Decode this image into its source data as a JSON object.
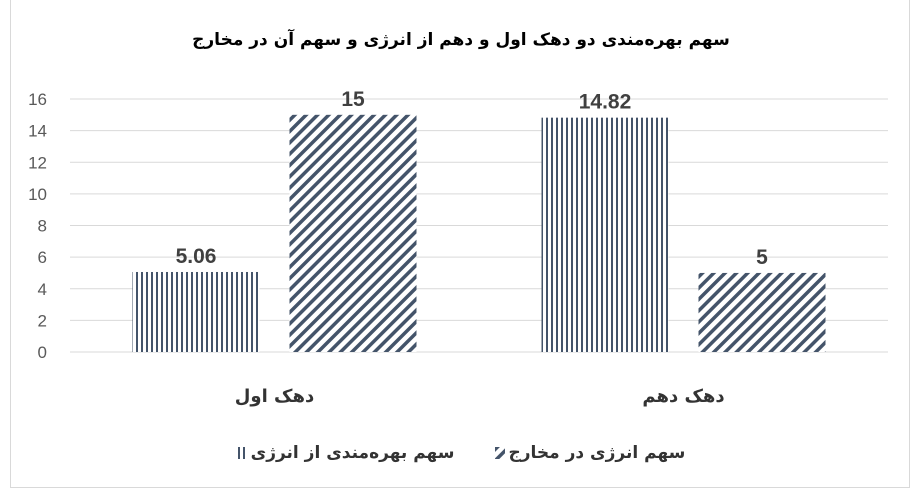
{
  "chart_data": {
    "type": "bar",
    "title": "سهم بهره‌مندی دو دهک اول و دهم از انرژی و سهم آن در مخارج",
    "categories": [
      "دهک اول",
      "دهک دهم"
    ],
    "series": [
      {
        "name": "سهم بهره‌مندی از انرژی",
        "values": [
          5.06,
          14.82
        ],
        "labels": [
          "5.06",
          "14.82"
        ],
        "pattern": "vertical-lines",
        "color": "#44546a"
      },
      {
        "name": "سهم انرژی در مخارج",
        "values": [
          15,
          5
        ],
        "labels": [
          "15",
          "5"
        ],
        "pattern": "diagonal-lines",
        "color": "#44546a"
      }
    ],
    "ylim": [
      0,
      16
    ],
    "yticks": [
      "0",
      "2",
      "4",
      "6",
      "8",
      "10",
      "12",
      "14",
      "16"
    ],
    "grid": true,
    "legend": "bottom"
  }
}
